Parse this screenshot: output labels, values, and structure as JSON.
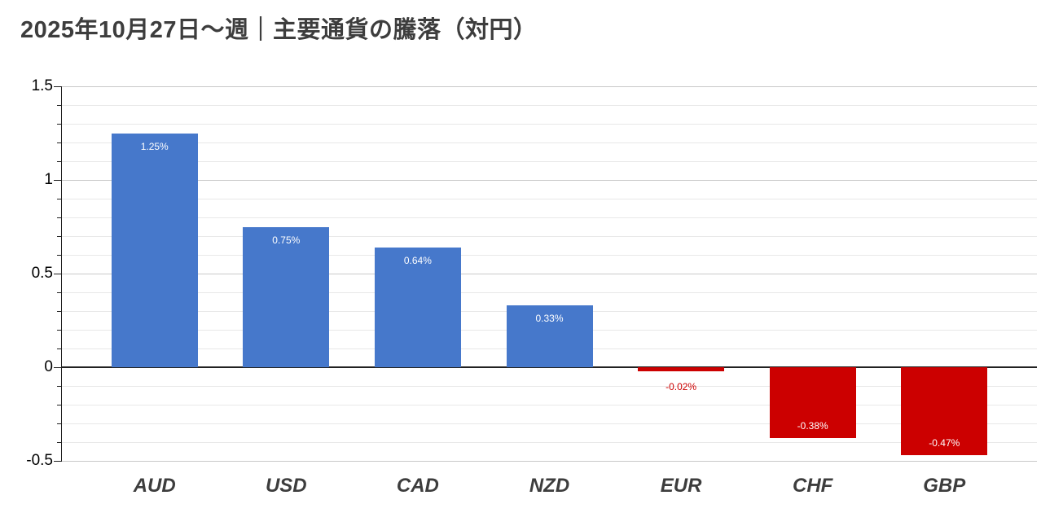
{
  "chart_data": {
    "type": "bar",
    "title": "2025年10月27日～週｜主要通貨の騰落（対円）",
    "categories": [
      "AUD",
      "USD",
      "CAD",
      "NZD",
      "EUR",
      "CHF",
      "GBP"
    ],
    "values": [
      1.25,
      0.75,
      0.64,
      0.33,
      -0.02,
      -0.38,
      -0.47
    ],
    "value_labels": [
      "1.25%",
      "0.75%",
      "0.64%",
      "0.33%",
      "-0.02%",
      "-0.38%",
      "-0.47%"
    ],
    "xlabel": "",
    "ylabel": "",
    "ylim": [
      -0.5,
      1.5
    ],
    "y_major_ticks": [
      {
        "v": 1.5,
        "label": "1.5"
      },
      {
        "v": 1,
        "label": "1"
      },
      {
        "v": 0.5,
        "label": "0.5"
      },
      {
        "v": 0,
        "label": "0"
      },
      {
        "v": -0.5,
        "label": "-0.5"
      }
    ],
    "y_minor_step": 0.1,
    "grid": true,
    "legend_position": "none",
    "colors": {
      "positive_bar": "#4678cb",
      "negative_bar": "#cc0000",
      "label_inside": "#ffffff",
      "label_outside_negative": "#cc0000",
      "axis_text": "#000000",
      "category_text": "#3d3d3d",
      "title_text": "#3d3d3d",
      "gridline_minor": "#e8e8e8",
      "gridline_major": "#c9c9c9",
      "zero_line": "#212121"
    }
  }
}
